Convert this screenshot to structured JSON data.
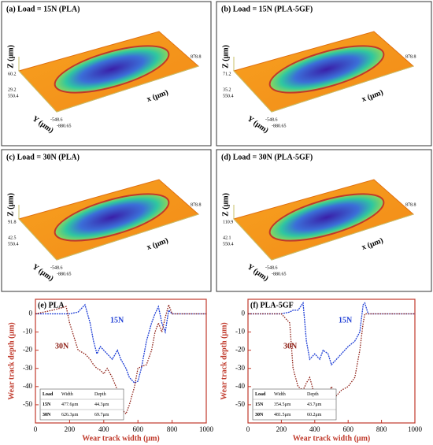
{
  "panels": [
    {
      "title": "(a) Load = 15N (PLA)",
      "z_label": "Z (μm)",
      "y_label": "Y (μm)",
      "x_label": "x (μm)",
      "ticks": [
        "60.2",
        "29.2",
        "550.4",
        "-548.6",
        "-880.65",
        "878.8"
      ]
    },
    {
      "title": "(b) Load = 15N (PLA-5GF)",
      "z_label": "Z (μm)",
      "y_label": "Y (μm)",
      "x_label": "x (μm)",
      "ticks": [
        "71.2",
        "35.2",
        "550.4",
        "-548.6",
        "-880.65",
        "878.8"
      ]
    },
    {
      "title": "(c) Load = 30N (PLA)",
      "z_label": "Z (μm)",
      "y_label": "Y (μm)",
      "x_label": "x (μm)",
      "ticks": [
        "91.8",
        "42.5",
        "550.4",
        "-548.6",
        "-880.65",
        "878.8"
      ]
    },
    {
      "title": "(d) Load = 30N (PLA-5GF)",
      "z_label": "Z (μm)",
      "y_label": "Y (μm)",
      "x_label": "x (μm)",
      "ticks": [
        "110.9",
        "42.1",
        "550.4",
        "-548.6",
        "-880.65",
        "878.8"
      ]
    }
  ],
  "chart_data": [
    {
      "type": "line",
      "title": "(e) PLA",
      "x_label": "Wear track width (μm)",
      "y_label": "Wear track depth (μm)",
      "x": [
        0,
        100,
        180,
        200,
        250,
        290,
        320,
        340,
        360,
        380,
        400,
        420,
        450,
        480,
        500,
        530,
        550,
        580,
        600,
        620,
        650,
        680,
        700,
        720,
        740,
        760,
        780,
        800,
        900,
        1000
      ],
      "series": [
        {
          "name": "15N",
          "color": "#1f3fd6",
          "values": [
            0,
            0,
            0,
            0,
            1,
            5,
            -5,
            -15,
            -22,
            -18,
            -20,
            -22,
            -25,
            -20,
            -25,
            -30,
            -35,
            -38,
            -37,
            -30,
            -15,
            -5,
            0,
            4,
            -5,
            -10,
            2,
            0,
            0,
            0
          ]
        },
        {
          "name": "30N",
          "color": "#8b1a10",
          "values": [
            0,
            2,
            4,
            -5,
            -20,
            -22,
            -25,
            -28,
            -30,
            -31,
            -33,
            -30,
            -35,
            -42,
            -52,
            -55,
            -50,
            -40,
            -30,
            -29,
            -28,
            -20,
            -10,
            -5,
            -10,
            -2,
            5,
            0,
            0,
            0
          ]
        }
      ],
      "xlim": [
        0,
        1000
      ],
      "xticks": [
        0,
        200,
        400,
        600,
        800,
        1000
      ],
      "ylim": [
        -60,
        8
      ],
      "yticks": [
        0,
        -10,
        -20,
        -30,
        -40,
        -50
      ],
      "table": {
        "header": [
          "Load",
          "Width",
          "Depth"
        ],
        "rows": [
          [
            "15N",
            "477.6μm",
            "44.3μm"
          ],
          [
            "30N",
            "626.3μm",
            "69.7μm"
          ]
        ]
      }
    },
    {
      "type": "line",
      "title": "(f) PLA-5GF",
      "x_label": "Wear track width (μm)",
      "y_label": "Wear track depth (μm)",
      "x": [
        0,
        200,
        250,
        270,
        300,
        330,
        350,
        370,
        400,
        430,
        450,
        480,
        500,
        530,
        560,
        600,
        640,
        670,
        690,
        700,
        720,
        800,
        1000
      ],
      "series": [
        {
          "name": "15N",
          "color": "#1f3fd6",
          "values": [
            0,
            0,
            1,
            2,
            2,
            6,
            -15,
            -25,
            -22,
            -25,
            -20,
            -22,
            -28,
            -25,
            -22,
            -18,
            -15,
            -10,
            5,
            6,
            0,
            0,
            0
          ]
        },
        {
          "name": "30N",
          "color": "#8b1a10",
          "values": [
            0,
            0,
            -5,
            -30,
            -40,
            -42,
            -38,
            -35,
            -45,
            -50,
            -57,
            -45,
            -40,
            -45,
            -42,
            -40,
            -35,
            -20,
            -5,
            0,
            0,
            0,
            0
          ]
        }
      ],
      "xlim": [
        0,
        1000
      ],
      "xticks": [
        0,
        200,
        400,
        600,
        800,
        1000
      ],
      "ylim": [
        -60,
        8
      ],
      "yticks": [
        0,
        -10,
        -20,
        -30,
        -40,
        -50
      ],
      "table": {
        "header": [
          "Load",
          "Width",
          "Depth"
        ],
        "rows": [
          [
            "15N",
            "354.5μm",
            "43.7μm"
          ],
          [
            "30N",
            "481.5μm",
            "60.2μm"
          ]
        ]
      }
    }
  ]
}
